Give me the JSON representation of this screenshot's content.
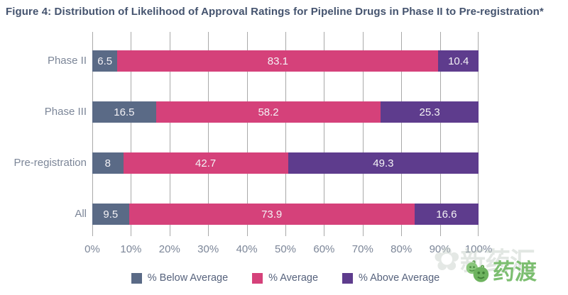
{
  "figure": {
    "title": "Figure 4: Distribution of Likelihood of Approval Ratings for Pipeline Drugs in Phase II to Pre-registration*"
  },
  "chart_data": {
    "type": "bar",
    "orientation": "horizontal",
    "stacked": true,
    "title": "Figure 4: Distribution of Likelihood of Approval Ratings for Pipeline Drugs in Phase II to Pre-registration*",
    "categories": [
      "Phase II",
      "Phase III",
      "Pre-registration",
      "All"
    ],
    "series": [
      {
        "name": "% Below Average",
        "color": "#5a6a86",
        "values": [
          6.5,
          16.5,
          8,
          9.5
        ]
      },
      {
        "name": "% Average",
        "color": "#d5417a",
        "values": [
          83.1,
          58.2,
          42.7,
          73.9
        ]
      },
      {
        "name": "% Above Average",
        "color": "#5e3c8d",
        "values": [
          10.4,
          25.3,
          49.3,
          16.6
        ]
      }
    ],
    "x_ticks": [
      "0%",
      "10%",
      "20%",
      "30%",
      "40%",
      "50%",
      "60%",
      "70%",
      "80%",
      "90%",
      "100%"
    ],
    "xlim": [
      0,
      100
    ],
    "grid": "vertical",
    "data_labels": "inside-white",
    "legend_position": "bottom"
  },
  "watermark": {
    "ghost_text": "新药汇",
    "logo_text": "药渡",
    "logo_color": "#7cbe70"
  }
}
